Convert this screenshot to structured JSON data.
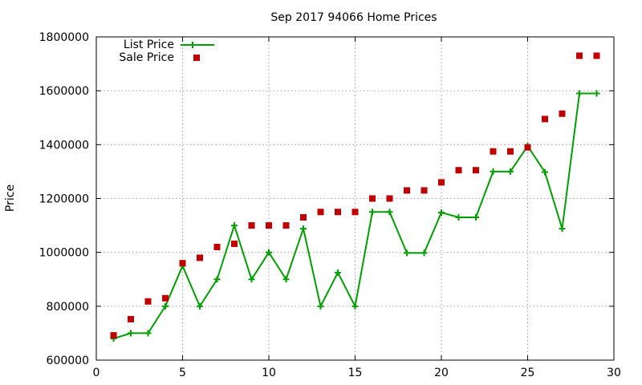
{
  "chart_data": {
    "type": "line",
    "title": "Sep 2017 94066 Home Prices",
    "xlabel": "",
    "ylabel": "Price",
    "xlim": [
      0,
      30
    ],
    "ylim": [
      600000,
      1800000
    ],
    "x_ticks": [
      "0",
      "5",
      "10",
      "15",
      "20",
      "25",
      "30"
    ],
    "y_ticks": [
      "600000",
      "800000",
      "1000000",
      "1200000",
      "1400000",
      "1600000",
      "1800000"
    ],
    "grid": true,
    "legend_position": "top-left",
    "series": [
      {
        "name": "List Price",
        "style": "lines+crosses",
        "color": "#00a000",
        "x": [
          1,
          2,
          3,
          4,
          5,
          6,
          7,
          8,
          9,
          10,
          11,
          12,
          13,
          14,
          15,
          16,
          17,
          18,
          19,
          20,
          21,
          22,
          23,
          24,
          25,
          26,
          27,
          28,
          29
        ],
        "y": [
          680000,
          700000,
          700000,
          800000,
          950000,
          800000,
          900000,
          1100000,
          900000,
          1000000,
          900000,
          1088000,
          800000,
          925000,
          800000,
          1150000,
          1150000,
          998000,
          998000,
          1148000,
          1130000,
          1130000,
          1300000,
          1300000,
          1395000,
          1298000,
          1088000,
          1590000,
          1590000
        ]
      },
      {
        "name": "Sale Price",
        "style": "squares",
        "color": "#c00000",
        "x": [
          1,
          2,
          3,
          4,
          5,
          6,
          7,
          8,
          9,
          10,
          11,
          12,
          13,
          14,
          15,
          16,
          17,
          18,
          19,
          20,
          21,
          22,
          23,
          24,
          25,
          26,
          27,
          28,
          29
        ],
        "y": [
          692000,
          752000,
          818000,
          830000,
          960000,
          980000,
          1020000,
          1032000,
          1100000,
          1100000,
          1100000,
          1130000,
          1150000,
          1150000,
          1150000,
          1200000,
          1200000,
          1230000,
          1230000,
          1260000,
          1305000,
          1305000,
          1375000,
          1375000,
          1390000,
          1495000,
          1515000,
          1730000,
          1730000
        ]
      }
    ]
  }
}
